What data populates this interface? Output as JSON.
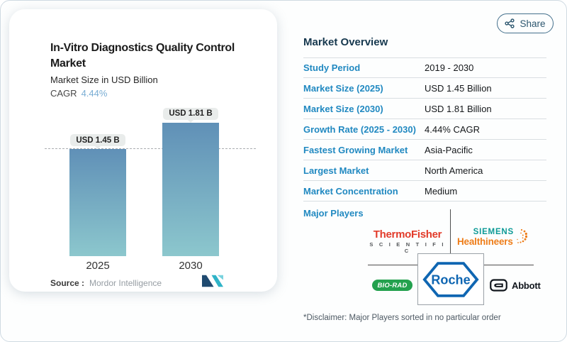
{
  "card": {
    "title": "In-Vitro Diagnostics Quality Control Market",
    "subtitle": "Market Size in USD Billion",
    "cagr_label": "CAGR",
    "cagr_value": "4.44%",
    "source_label": "Source :",
    "source_value": "Mordor Intelligence"
  },
  "chart_data": {
    "type": "bar",
    "categories": [
      "2025",
      "2030"
    ],
    "values": [
      1.45,
      1.81
    ],
    "bar_labels": [
      "USD 1.45 B",
      "USD 1.81 B"
    ],
    "title": "In-Vitro Diagnostics Quality Control Market",
    "ylabel": "Market Size in USD Billion",
    "cagr": "4.44%",
    "reference_line_at": 1.45,
    "grid": false,
    "colors": {
      "bar_top": "#6090b7",
      "bar_bottom": "#8cc7cd",
      "label_pill_bg": "#e9eceb",
      "dashed_line": "#aaaeb0"
    }
  },
  "share": {
    "label": "Share"
  },
  "overview": {
    "heading": "Market Overview",
    "rows": [
      {
        "label": "Study Period",
        "value": "2019 - 2030"
      },
      {
        "label": "Market Size (2025)",
        "value": "USD 1.45 Billion"
      },
      {
        "label": "Market Size (2030)",
        "value": "USD 1.81 Billion"
      },
      {
        "label": "Growth Rate (2025 - 2030)",
        "value": "4.44% CAGR"
      },
      {
        "label": "Fastest Growing Market",
        "value": "Asia-Pacific"
      },
      {
        "label": "Largest Market",
        "value": "North America"
      },
      {
        "label": "Market Concentration",
        "value": "Medium"
      }
    ],
    "major_players_label": "Major Players",
    "players": {
      "thermo_line1": "ThermoFisher",
      "thermo_line2": "S C I E N T I F I C",
      "siemens_line1": "SIEMENS",
      "siemens_line2": "Healthineers",
      "biorad": "BIO-RAD",
      "roche": "Roche",
      "abbott": "Abbott"
    },
    "disclaimer": "*Disclaimer: Major Players sorted in no particular order"
  },
  "brand_colors": {
    "accent_blue": "#2189c1",
    "heading_navy": "#16384e",
    "thermo_red": "#e23b2a",
    "siemens_teal": "#0c9a96",
    "healthineers_orange": "#ee7d19",
    "biorad_green": "#23a14e",
    "roche_blue": "#0f66b2",
    "abbott_black": "#10151c"
  }
}
